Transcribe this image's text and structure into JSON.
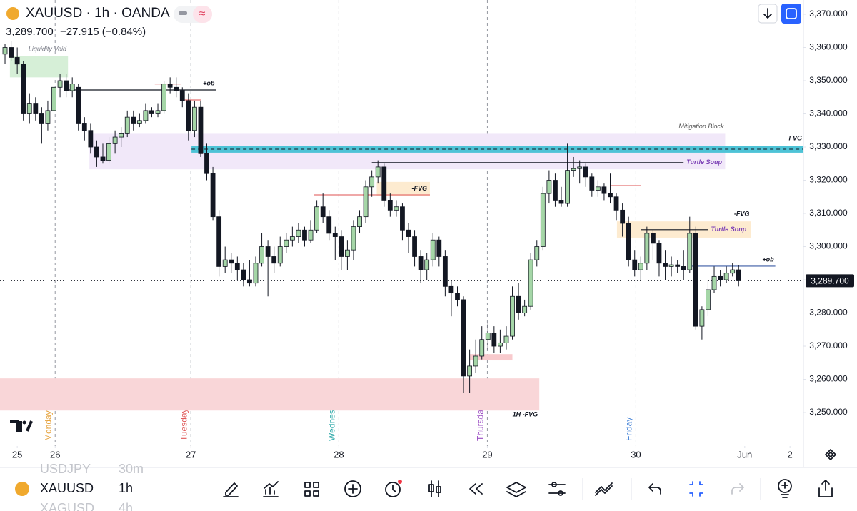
{
  "header": {
    "symbol_line": "XAUUSD · 1h · OANDA",
    "price": "3,289.700",
    "change": "−27.915 (−0.84%)"
  },
  "toolbar": {
    "symbol": "XAUUSD",
    "interval": "1h",
    "prev_symbol": "USDJPY",
    "prev_interval": "30m",
    "next_symbol": "XAGUSD",
    "next_interval": "4h"
  },
  "chart_data": {
    "type": "candlestick",
    "up_color": "#a5d6a7",
    "down_color": "#131722",
    "outline_color": "#131722",
    "xlim": [
      -0.82,
      130.6
    ],
    "ylim": [
      3239.9,
      3374.3
    ],
    "xticks": [
      {
        "value": 2,
        "label": "25"
      },
      {
        "value": 8.2,
        "label": "26"
      },
      {
        "value": 30.4,
        "label": "27"
      },
      {
        "value": 54.6,
        "label": "28"
      },
      {
        "value": 78.9,
        "label": "29"
      },
      {
        "value": 103.2,
        "label": "30"
      },
      {
        "value": 121,
        "label": "Jun"
      },
      {
        "value": 128.4,
        "label": "2"
      }
    ],
    "yticks": [
      {
        "value": 3370,
        "label": "3,370.000"
      },
      {
        "value": 3360,
        "label": "3,360.000"
      },
      {
        "value": 3350,
        "label": "3,350.000"
      },
      {
        "value": 3340,
        "label": "3,340.000"
      },
      {
        "value": 3330,
        "label": "3,330.000"
      },
      {
        "value": 3320,
        "label": "3,320.000"
      },
      {
        "value": 3310,
        "label": "3,310.000"
      },
      {
        "value": 3300,
        "label": "3,300.000"
      },
      {
        "value": 3290,
        "label": "3,290.000"
      },
      {
        "value": 3280,
        "label": "3,280.000"
      },
      {
        "value": 3270,
        "label": "3,270.000"
      },
      {
        "value": 3260,
        "label": "3,260.000"
      },
      {
        "value": 3250,
        "label": "3,250.000"
      }
    ],
    "last_price": {
      "value": 3289.7,
      "label": "3,289.700"
    },
    "sessions": [
      {
        "label": "Monday",
        "x": 8.2,
        "color": "#e6a23c"
      },
      {
        "label": "Tuesday",
        "x": 30.4,
        "color": "#e05a5a"
      },
      {
        "label": "Wednesday",
        "x": 54.6,
        "color": "#26a6a6"
      },
      {
        "label": "Thursday",
        "x": 78.9,
        "color": "#9c4fc4"
      },
      {
        "label": "Friday",
        "x": 103.2,
        "color": "#3f7fd6"
      }
    ],
    "zones": [
      {
        "label": "Liquidity Void",
        "x": [
          0.8,
          10.3
        ],
        "y": [
          3351,
          3357.5
        ],
        "color": "#d6efd7",
        "label_color": "#787b86",
        "label_pos": "above-left"
      },
      {
        "label": "Mitigation Block",
        "x": [
          13.8,
          117.8
        ],
        "y": [
          3323.3,
          3334
        ],
        "color": "#f1e8f9",
        "label_color": "#555",
        "label_pos": "above-right"
      },
      {
        "label": "FVG",
        "x": [
          30.5,
          130.6
        ],
        "y": [
          3328.3,
          3330.4
        ],
        "color": "#4ec3d6",
        "label_color": "#131722",
        "label_pos": "above-right",
        "midline": true
      },
      {
        "label": "-FVG",
        "x": [
          60.8,
          69.5
        ],
        "y": [
          3315.2,
          3319.5
        ],
        "color": "#fdebd0",
        "label_color": "#131722",
        "label_pos": "inside-right"
      },
      {
        "label": "-FVG",
        "x": [
          100.1,
          122
        ],
        "y": [
          3302.7,
          3307.6
        ],
        "color": "#fdebd0",
        "label_color": "#131722",
        "label_pos": "above-right"
      },
      {
        "label": "1H -FVG",
        "x": [
          -0.82,
          87.4
        ],
        "y": [
          3250.6,
          3260.3
        ],
        "color": "#f9d6d8",
        "label_color": "#131722",
        "label_pos": "below-right"
      },
      {
        "x": [
          76,
          83
        ],
        "y": [
          3265.7,
          3267.6
        ],
        "color": "#f8cacd"
      }
    ],
    "lines": [
      {
        "label": "+ob",
        "x": [
          10.3,
          34.5
        ],
        "y": 3347.2,
        "color": "#131722",
        "label_color": "#131722",
        "label_pos": "above-end"
      },
      {
        "label": "Turtle Soup",
        "x": [
          60,
          111
        ],
        "y": 3325.3,
        "color": "#131722",
        "label_color": "#7b3fb5",
        "label_pos": "after-end"
      },
      {
        "label": "Turtle Soup",
        "x": [
          104,
          115
        ],
        "y": 3305.1,
        "color": "#131722",
        "label_color": "#7b3fb5",
        "label_pos": "after-end"
      },
      {
        "label": "+ob",
        "x": [
          111.8,
          126
        ],
        "y": 3294.1,
        "color": "#3b5ba5",
        "label_color": "#131722",
        "label_pos": "above-end"
      },
      {
        "x": [
          28.7,
          32
        ],
        "y": 3344.2,
        "color": "#e57373"
      },
      {
        "x": [
          50.5,
          69.5
        ],
        "y": 3315.6,
        "color": "#e57373"
      },
      {
        "x": [
          99,
          104
        ],
        "y": 3318.4,
        "color": "#e57373"
      },
      {
        "x": [
          24.5,
          28.7
        ],
        "y": 3349,
        "color": "#e57373"
      }
    ],
    "ohlc": [
      [
        3358,
        3361,
        3355,
        3360
      ],
      [
        3360,
        3362,
        3356,
        3357
      ],
      [
        3357,
        3360,
        3352,
        3355
      ],
      [
        3355,
        3356,
        3338,
        3340
      ],
      [
        3340,
        3346,
        3337,
        3343
      ],
      [
        3343,
        3345,
        3338,
        3340
      ],
      [
        3340,
        3342,
        3331,
        3337
      ],
      [
        3337,
        3344,
        3335,
        3341
      ],
      [
        3341,
        3361,
        3340,
        3348
      ],
      [
        3348,
        3352,
        3345,
        3350
      ],
      [
        3350,
        3352,
        3345,
        3347
      ],
      [
        3347,
        3351,
        3345,
        3349
      ],
      [
        3348,
        3349,
        3335,
        3337
      ],
      [
        3337,
        3339,
        3332,
        3335
      ],
      [
        3335,
        3337,
        3328,
        3330
      ],
      [
        3330,
        3332,
        3324,
        3327
      ],
      [
        3327,
        3331,
        3325,
        3326
      ],
      [
        3326,
        3333,
        3325,
        3331
      ],
      [
        3331,
        3335,
        3328,
        3333
      ],
      [
        3333,
        3336,
        3330,
        3334
      ],
      [
        3334,
        3341,
        3333,
        3339
      ],
      [
        3339,
        3341,
        3335,
        3337
      ],
      [
        3337,
        3340,
        3336,
        3338
      ],
      [
        3338,
        3343,
        3337,
        3341
      ],
      [
        3341,
        3342,
        3339,
        3340
      ],
      [
        3340,
        3343,
        3339,
        3341
      ],
      [
        3341,
        3350,
        3340,
        3349
      ],
      [
        3349,
        3351,
        3346,
        3348
      ],
      [
        3348,
        3351,
        3345,
        3347
      ],
      [
        3347,
        3348,
        3342,
        3344
      ],
      [
        3344,
        3346,
        3332,
        3335
      ],
      [
        3335,
        3344,
        3333,
        3342
      ],
      [
        3342,
        3344,
        3327,
        3328
      ],
      [
        3328,
        3331,
        3320,
        3322
      ],
      [
        3322,
        3324,
        3308,
        3309
      ],
      [
        3309,
        3311,
        3291,
        3294
      ],
      [
        3294,
        3300,
        3292,
        3296
      ],
      [
        3296,
        3298,
        3292,
        3295
      ],
      [
        3295,
        3297,
        3290,
        3293
      ],
      [
        3293,
        3295,
        3288,
        3290
      ],
      [
        3290,
        3296,
        3288,
        3289
      ],
      [
        3289,
        3297,
        3288,
        3295
      ],
      [
        3295,
        3304,
        3294,
        3300
      ],
      [
        3300,
        3302,
        3285,
        3297
      ],
      [
        3297,
        3300,
        3292,
        3295
      ],
      [
        3295,
        3303,
        3294,
        3300
      ],
      [
        3300,
        3304,
        3298,
        3302
      ],
      [
        3302,
        3306,
        3300,
        3303
      ],
      [
        3303,
        3307,
        3301,
        3305
      ],
      [
        3305,
        3306,
        3300,
        3302
      ],
      [
        3302,
        3308,
        3301,
        3305
      ],
      [
        3305,
        3314,
        3304,
        3312
      ],
      [
        3312,
        3316,
        3307,
        3309
      ],
      [
        3309,
        3311,
        3302,
        3304
      ],
      [
        3304,
        3306,
        3296,
        3303
      ],
      [
        3303,
        3305,
        3293,
        3297
      ],
      [
        3297,
        3302,
        3293,
        3299
      ],
      [
        3299,
        3308,
        3296,
        3306
      ],
      [
        3306,
        3311,
        3304,
        3309
      ],
      [
        3309,
        3320,
        3307,
        3318
      ],
      [
        3318,
        3323,
        3315,
        3321
      ],
      [
        3321,
        3326,
        3319,
        3324
      ],
      [
        3324,
        3325,
        3312,
        3314
      ],
      [
        3314,
        3316,
        3309,
        3311
      ],
      [
        3311,
        3314,
        3309,
        3312
      ],
      [
        3312,
        3313,
        3302,
        3305
      ],
      [
        3305,
        3307,
        3298,
        3303
      ],
      [
        3303,
        3305,
        3294,
        3297
      ],
      [
        3297,
        3299,
        3289,
        3293
      ],
      [
        3293,
        3298,
        3290,
        3296
      ],
      [
        3296,
        3304,
        3294,
        3302
      ],
      [
        3302,
        3303,
        3294,
        3297
      ],
      [
        3297,
        3299,
        3285,
        3288
      ],
      [
        3288,
        3290,
        3279,
        3286
      ],
      [
        3286,
        3288,
        3282,
        3284
      ],
      [
        3284,
        3285,
        3256,
        3261
      ],
      [
        3261,
        3269,
        3256,
        3264
      ],
      [
        3264,
        3272,
        3262,
        3267
      ],
      [
        3267,
        3276,
        3266,
        3272
      ],
      [
        3272,
        3277,
        3269,
        3274
      ],
      [
        3274,
        3276,
        3268,
        3270
      ],
      [
        3270,
        3275,
        3268,
        3271
      ],
      [
        3271,
        3276,
        3269,
        3273
      ],
      [
        3273,
        3288,
        3272,
        3285
      ],
      [
        3285,
        3289,
        3278,
        3280
      ],
      [
        3280,
        3284,
        3279,
        3282
      ],
      [
        3282,
        3298,
        3281,
        3296
      ],
      [
        3296,
        3302,
        3294,
        3300
      ],
      [
        3300,
        3318,
        3299,
        3316
      ],
      [
        3316,
        3323,
        3313,
        3320
      ],
      [
        3320,
        3322,
        3312,
        3314
      ],
      [
        3314,
        3318,
        3312,
        3313
      ],
      [
        3313,
        3331,
        3312,
        3323
      ],
      [
        3323,
        3327,
        3321,
        3323.5
      ],
      [
        3323.5,
        3326,
        3319,
        3324
      ],
      [
        3324,
        3325,
        3318,
        3321
      ],
      [
        3321,
        3322,
        3315,
        3317
      ],
      [
        3317,
        3320,
        3315,
        3318
      ],
      [
        3318,
        3319,
        3314,
        3316
      ],
      [
        3316,
        3322,
        3313,
        3315
      ],
      [
        3315,
        3316,
        3308,
        3311
      ],
      [
        3311,
        3313,
        3303,
        3307
      ],
      [
        3307,
        3309,
        3294,
        3296
      ],
      [
        3296,
        3299,
        3291,
        3293
      ],
      [
        3293,
        3297,
        3290,
        3295
      ],
      [
        3295,
        3306,
        3293,
        3304
      ],
      [
        3304,
        3305,
        3296,
        3301
      ],
      [
        3301,
        3302,
        3291,
        3295
      ],
      [
        3295,
        3299,
        3290,
        3294
      ],
      [
        3294,
        3297,
        3291,
        3294.5
      ],
      [
        3294.5,
        3296,
        3292,
        3294
      ],
      [
        3294,
        3299,
        3290,
        3293
      ],
      [
        3293,
        3309,
        3292,
        3304
      ],
      [
        3304,
        3306,
        3275,
        3276
      ],
      [
        3276,
        3282,
        3272,
        3281
      ],
      [
        3281,
        3290,
        3279,
        3287
      ],
      [
        3287,
        3294,
        3286,
        3291
      ],
      [
        3291,
        3293,
        3288,
        3290
      ],
      [
        3290,
        3294,
        3289,
        3292
      ],
      [
        3292,
        3295,
        3291,
        3293
      ],
      [
        3293,
        3294.5,
        3288,
        3289.7
      ]
    ]
  }
}
